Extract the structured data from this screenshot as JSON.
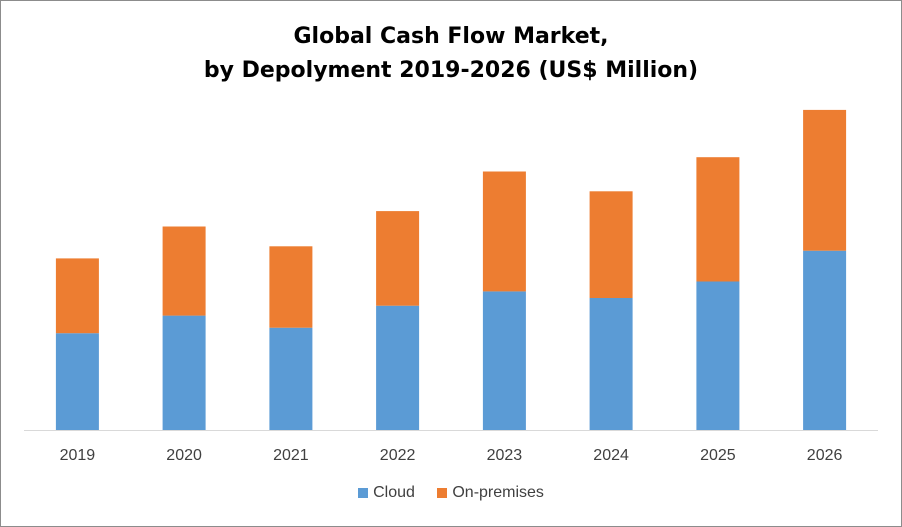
{
  "chart_data": {
    "type": "bar",
    "stacked": true,
    "title": "Global Cash Flow Market,",
    "subtitle": "by Depolyment 2019-2026 (US$ Million)",
    "xlabel": "",
    "ylabel": "",
    "ylim": [
      0,
      300
    ],
    "grid": false,
    "legend_position": "bottom",
    "categories": [
      "2019",
      "2020",
      "2021",
      "2022",
      "2023",
      "2024",
      "2025",
      "2026"
    ],
    "series": [
      {
        "name": "Cloud",
        "color": "#5b9bd5",
        "values": [
          88,
          104,
          93,
          113,
          126,
          120,
          135,
          163
        ]
      },
      {
        "name": "On-premises",
        "color": "#ed7d31",
        "values": [
          68,
          81,
          74,
          86,
          109,
          97,
          113,
          128
        ]
      }
    ]
  }
}
